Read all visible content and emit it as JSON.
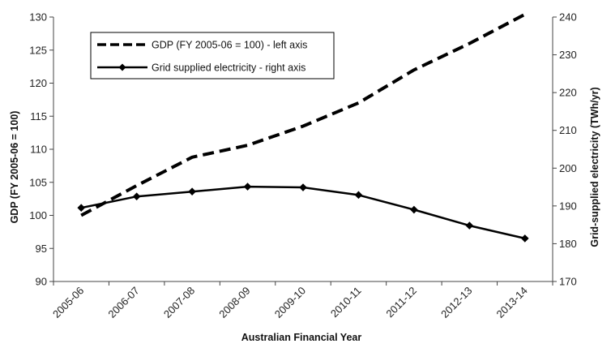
{
  "chart_data": {
    "type": "line",
    "title": "",
    "categories": [
      "2005-06",
      "2006-07",
      "2007-08",
      "2008-09",
      "2009-10",
      "2010-11",
      "2011-12",
      "2012-13",
      "2013-14"
    ],
    "xlabel": "Australian Financial Year",
    "ylabel_left": "GDP  (FY 2005-06 = 100)",
    "ylabel_right": "Grid-supplied electricity (TWh/yr)",
    "ylim_left": [
      90,
      130
    ],
    "yticks_left": [
      "90",
      "95",
      "100",
      "105",
      "110",
      "115",
      "120",
      "125",
      "130"
    ],
    "ylim_right": [
      170,
      240
    ],
    "yticks_right": [
      "170",
      "180",
      "190",
      "200",
      "210",
      "220",
      "230",
      "240"
    ],
    "grid": false,
    "legend_position": "top-left",
    "series": [
      {
        "name": "GDP (FY 2005-06 = 100) - left axis",
        "axis": "left",
        "style": "dashed",
        "markers": false,
        "values": [
          100.0,
          104.5,
          108.8,
          110.6,
          113.5,
          117.0,
          122.0,
          126.0,
          130.4
        ]
      },
      {
        "name": "Grid supplied electricity - right axis",
        "axis": "right",
        "style": "solid",
        "markers": true,
        "values": [
          189.5,
          192.5,
          193.8,
          195.1,
          194.9,
          192.9,
          189.0,
          184.8,
          181.4
        ]
      }
    ]
  }
}
